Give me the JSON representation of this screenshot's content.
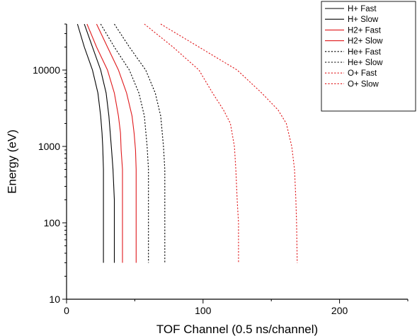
{
  "chart_data": {
    "type": "line",
    "xlabel": "TOF Channel (0.5 ns/channel)",
    "ylabel": "Energy (eV)",
    "xlim": [
      0,
      250
    ],
    "ylim": [
      10,
      40000
    ],
    "yscale": "log",
    "xticks": [
      0,
      100,
      200
    ],
    "xtick_labels": [
      "0",
      "100",
      "200"
    ],
    "yticks": [
      10,
      100,
      1000,
      10000
    ],
    "ytick_labels": [
      "10",
      "100",
      "1000",
      "10000"
    ],
    "grid": false,
    "legend_position": "top-right",
    "series": [
      {
        "name": "H+ Fast",
        "color": "#000000",
        "dash": "solid",
        "x": [
          8,
          13,
          19,
          23,
          25,
          26,
          26.5,
          27,
          27,
          27,
          27
        ],
        "y": [
          40000,
          20000,
          10000,
          5000,
          2500,
          1500,
          1000,
          500,
          200,
          100,
          30
        ]
      },
      {
        "name": "H+ Slow",
        "color": "#000000",
        "dash": "solid",
        "x": [
          13,
          19,
          25,
          29,
          31,
          32,
          33,
          34,
          35,
          35,
          35
        ],
        "y": [
          40000,
          20000,
          10000,
          5000,
          2500,
          1500,
          900,
          500,
          200,
          100,
          30
        ]
      },
      {
        "name": "H2+ Fast",
        "color": "#e0191c",
        "dash": "solid",
        "x": [
          15,
          22,
          30,
          35,
          38,
          39.5,
          40,
          41,
          41,
          41
        ],
        "y": [
          40000,
          20000,
          10000,
          5000,
          2500,
          1500,
          900,
          500,
          100,
          30
        ]
      },
      {
        "name": "H2+ Slow",
        "color": "#e0191c",
        "dash": "solid",
        "x": [
          22,
          30,
          38,
          44,
          48,
          49.5,
          50.5,
          51,
          51,
          51
        ],
        "y": [
          40000,
          20000,
          10000,
          5000,
          2500,
          1500,
          900,
          500,
          100,
          30
        ]
      },
      {
        "name": "He+ Fast",
        "color": "#000000",
        "dash": "dotted",
        "x": [
          25,
          35,
          46,
          53,
          57,
          59,
          60,
          60,
          60
        ],
        "y": [
          40000,
          20000,
          10000,
          5000,
          2500,
          1000,
          500,
          100,
          30
        ]
      },
      {
        "name": "He+ Slow",
        "color": "#000000",
        "dash": "dotted",
        "x": [
          35,
          46,
          58,
          65,
          69,
          71,
          72,
          72,
          72
        ],
        "y": [
          40000,
          20000,
          10000,
          5000,
          2500,
          1000,
          500,
          100,
          30
        ]
      },
      {
        "name": "O+ Fast",
        "color": "#e0191c",
        "dash": "dotted",
        "x": [
          57,
          78,
          97,
          107,
          115,
          120,
          123,
          124,
          125,
          126,
          126
        ],
        "y": [
          40000,
          20000,
          10000,
          5000,
          3000,
          2000,
          1000,
          500,
          200,
          100,
          30
        ]
      },
      {
        "name": "O+ Slow",
        "color": "#e0191c",
        "dash": "dotted",
        "x": [
          69,
          97,
          125,
          143,
          155,
          161,
          165,
          167,
          168,
          168.5,
          169
        ],
        "y": [
          40000,
          20000,
          10000,
          5000,
          3000,
          2000,
          1000,
          500,
          200,
          100,
          30
        ]
      }
    ]
  }
}
